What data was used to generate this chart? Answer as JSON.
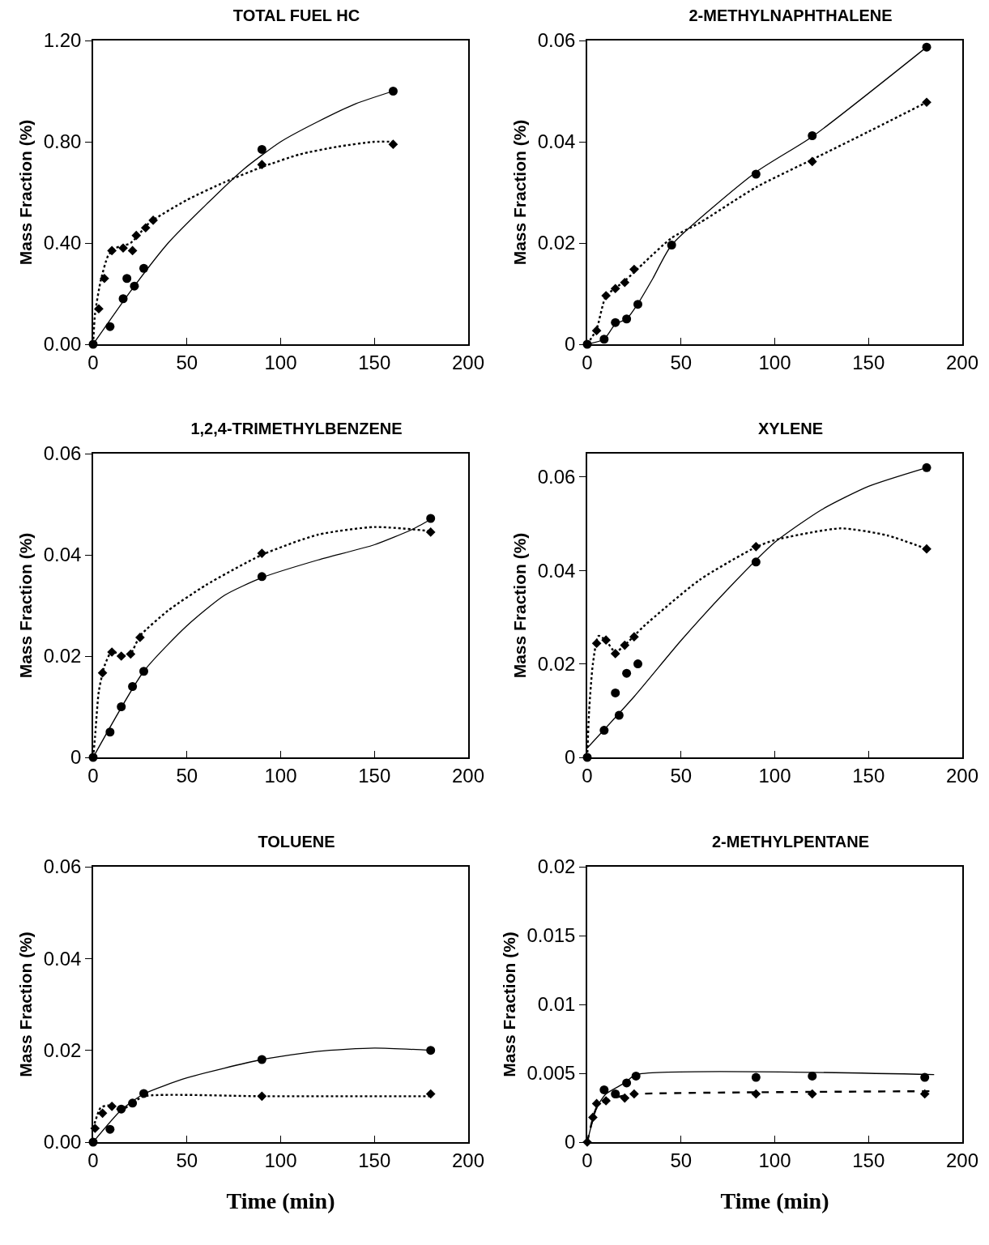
{
  "chart_data": [
    {
      "type": "scatter",
      "title": "TOTAL FUEL HC",
      "ylabel": "Mass Fraction (%)",
      "xlim": [
        0,
        200
      ],
      "xticks": [
        0,
        50,
        100,
        150,
        200
      ],
      "ylim": [
        0,
        1.2
      ],
      "yticks": [
        {
          "value": 0,
          "label": "0.00"
        },
        {
          "value": 0.4,
          "label": "0.40"
        },
        {
          "value": 0.8,
          "label": "0.80"
        },
        {
          "value": 1.2,
          "label": "1.20"
        }
      ],
      "series": [
        {
          "marker": "circle",
          "color": "#000000",
          "x": [
            0,
            9,
            16,
            18,
            22,
            27,
            90,
            160
          ],
          "values": [
            0,
            0.07,
            0.18,
            0.26,
            0.23,
            0.3,
            0.77,
            1.0
          ]
        },
        {
          "type": "scatter",
          "marker": "diamond",
          "color": "#000000",
          "x": [
            3,
            6,
            10,
            16,
            21,
            23,
            28,
            32,
            90,
            160
          ],
          "values": [
            0.14,
            0.26,
            0.37,
            0.38,
            0.37,
            0.43,
            0.46,
            0.49,
            0.71,
            0.79
          ]
        },
        {
          "type": "line",
          "line_style": "solid",
          "color": "#000000",
          "x": [
            0,
            20,
            40,
            60,
            80,
            100,
            120,
            140,
            160
          ],
          "values": [
            0,
            0.21,
            0.4,
            0.55,
            0.69,
            0.8,
            0.88,
            0.95,
            1.0
          ]
        },
        {
          "type": "line",
          "line_style": "dotted",
          "color": "#000000",
          "x": [
            0,
            1,
            4,
            8,
            12,
            20,
            30,
            50,
            70,
            90,
            110,
            130,
            150,
            160
          ],
          "values": [
            0,
            0.12,
            0.25,
            0.35,
            0.38,
            0.4,
            0.48,
            0.57,
            0.64,
            0.7,
            0.75,
            0.78,
            0.8,
            0.8
          ]
        }
      ]
    },
    {
      "type": "scatter",
      "title": "2-METHYLNAPHTHALENE",
      "ylabel": "Mass Fraction (%)",
      "xlim": [
        0,
        200
      ],
      "xticks": [
        0,
        50,
        100,
        150,
        200
      ],
      "ylim": [
        0,
        0.06
      ],
      "yticks": [
        0,
        0.02,
        0.04,
        0.06
      ],
      "series": [
        {
          "marker": "circle",
          "color": "#000000",
          "x": [
            0,
            9,
            15,
            21,
            27,
            45,
            90,
            120,
            181
          ],
          "values": [
            0,
            0.001,
            0.0043,
            0.005,
            0.0079,
            0.0196,
            0.0336,
            0.0412,
            0.0587
          ]
        },
        {
          "type": "scatter",
          "marker": "diamond",
          "color": "#000000",
          "x": [
            5,
            10,
            15,
            20,
            25,
            120,
            181
          ],
          "values": [
            0.0027,
            0.0096,
            0.011,
            0.0122,
            0.0148,
            0.0361,
            0.0478
          ]
        },
        {
          "type": "line",
          "line_style": "solid",
          "color": "#000000",
          "x": [
            0,
            9,
            15,
            21,
            27,
            35,
            45,
            90,
            120,
            181
          ],
          "values": [
            0,
            0.001,
            0.004,
            0.005,
            0.008,
            0.013,
            0.0196,
            0.034,
            0.041,
            0.0587
          ]
        },
        {
          "type": "line",
          "line_style": "dotted",
          "color": "#000000",
          "x": [
            0,
            5,
            10,
            20,
            30,
            45,
            60,
            90,
            120,
            150,
            181
          ],
          "values": [
            0,
            0.003,
            0.0095,
            0.0125,
            0.016,
            0.021,
            0.024,
            0.031,
            0.0365,
            0.042,
            0.0478
          ]
        }
      ]
    },
    {
      "type": "scatter",
      "title": "1,2,4-TRIMETHYLBENZENE",
      "ylabel": "Mass Fraction (%)",
      "xlim": [
        0,
        200
      ],
      "xticks": [
        0,
        50,
        100,
        150,
        200
      ],
      "ylim": [
        0,
        0.06
      ],
      "yticks": [
        0,
        0.02,
        0.04,
        0.06
      ],
      "series": [
        {
          "marker": "circle",
          "color": "#000000",
          "x": [
            0,
            9,
            15,
            21,
            27,
            90,
            180
          ],
          "values": [
            0,
            0.005,
            0.01,
            0.014,
            0.017,
            0.0357,
            0.0472
          ]
        },
        {
          "type": "scatter",
          "marker": "diamond",
          "color": "#000000",
          "x": [
            5,
            10,
            15,
            20,
            25,
            90,
            180
          ],
          "values": [
            0.0167,
            0.0208,
            0.02,
            0.0204,
            0.0237,
            0.0403,
            0.0445
          ]
        },
        {
          "type": "line",
          "line_style": "solid",
          "color": "#000000",
          "x": [
            0,
            27,
            50,
            70,
            90,
            120,
            150,
            170,
            180
          ],
          "values": [
            0,
            0.017,
            0.026,
            0.032,
            0.0355,
            0.039,
            0.042,
            0.045,
            0.047
          ]
        },
        {
          "type": "line",
          "line_style": "dotted",
          "color": "#000000",
          "x": [
            0,
            1,
            3,
            6,
            10,
            15,
            20,
            25,
            40,
            60,
            90,
            120,
            150,
            180
          ],
          "values": [
            0,
            0.004,
            0.013,
            0.018,
            0.021,
            0.02,
            0.0205,
            0.024,
            0.029,
            0.034,
            0.04,
            0.044,
            0.0455,
            0.0447
          ]
        }
      ]
    },
    {
      "type": "scatter",
      "title": "XYLENE",
      "ylabel": "Mass Fraction (%)",
      "xlim": [
        0,
        200
      ],
      "xticks": [
        0,
        50,
        100,
        150,
        200
      ],
      "ylim": [
        0,
        0.065
      ],
      "yticks": [
        0,
        0.02,
        0.04,
        0.06
      ],
      "series": [
        {
          "marker": "circle",
          "color": "#000000",
          "x": [
            0,
            9,
            15,
            17,
            21,
            27,
            90,
            181
          ],
          "values": [
            0,
            0.0058,
            0.0138,
            0.009,
            0.018,
            0.02,
            0.0418,
            0.062
          ]
        },
        {
          "type": "scatter",
          "marker": "diamond",
          "color": "#000000",
          "x": [
            5,
            10,
            15,
            20,
            25,
            90,
            181
          ],
          "values": [
            0.0244,
            0.0251,
            0.0222,
            0.024,
            0.0258,
            0.0451,
            0.0446
          ]
        },
        {
          "type": "line",
          "line_style": "solid",
          "color": "#000000",
          "x": [
            0,
            25,
            50,
            75,
            100,
            125,
            150,
            181
          ],
          "values": [
            0.002,
            0.013,
            0.025,
            0.036,
            0.046,
            0.053,
            0.058,
            0.062
          ]
        },
        {
          "type": "line",
          "line_style": "dotted",
          "color": "#000000",
          "x": [
            0,
            1,
            3,
            6,
            10,
            15,
            20,
            30,
            60,
            90,
            100,
            135,
            160,
            181
          ],
          "values": [
            0,
            0.01,
            0.02,
            0.026,
            0.025,
            0.0225,
            0.024,
            0.028,
            0.038,
            0.045,
            0.0465,
            0.049,
            0.0475,
            0.0446
          ]
        }
      ]
    },
    {
      "type": "scatter",
      "title": "TOLUENE",
      "ylabel": "Mass Fraction (%)",
      "xlabel": "Time (min)",
      "xlim": [
        0,
        200
      ],
      "xticks": [
        0,
        50,
        100,
        150,
        200
      ],
      "ylim": [
        0,
        0.06
      ],
      "yticks": [
        {
          "value": 0,
          "label": "0.00"
        },
        0.02,
        0.04,
        0.06
      ],
      "series": [
        {
          "marker": "circle",
          "color": "#000000",
          "x": [
            0,
            9,
            15,
            21,
            27,
            90,
            180
          ],
          "values": [
            0,
            0.0028,
            0.0072,
            0.0085,
            0.0106,
            0.018,
            0.02
          ]
        },
        {
          "type": "scatter",
          "marker": "diamond",
          "color": "#000000",
          "x": [
            1,
            5,
            10,
            90,
            180
          ],
          "values": [
            0.003,
            0.0063,
            0.0078,
            0.01,
            0.0105
          ]
        },
        {
          "type": "line",
          "line_style": "solid",
          "color": "#000000",
          "x": [
            0,
            15,
            27,
            50,
            90,
            120,
            150,
            180
          ],
          "values": [
            0,
            0.007,
            0.0105,
            0.014,
            0.018,
            0.0198,
            0.0205,
            0.02
          ]
        },
        {
          "type": "line",
          "line_style": "dotted",
          "color": "#000000",
          "x": [
            0,
            4,
            8,
            15,
            21,
            27,
            90,
            180
          ],
          "values": [
            0.003,
            0.0075,
            0.008,
            0.007,
            0.0085,
            0.01,
            0.01,
            0.01
          ]
        }
      ]
    },
    {
      "type": "scatter",
      "title": "2-METHYLPENTANE",
      "ylabel": "Mass Fraction (%)",
      "xlabel": "Time (min)",
      "xlim": [
        0,
        200
      ],
      "xticks": [
        0,
        50,
        100,
        150,
        200
      ],
      "ylim": [
        0,
        0.02
      ],
      "yticks": [
        0,
        0.005,
        0.01,
        0.015,
        0.02
      ],
      "series": [
        {
          "marker": "circle",
          "color": "#000000",
          "x": [
            9,
            15,
            21,
            26,
            90,
            120,
            180
          ],
          "values": [
            0.0038,
            0.0035,
            0.0043,
            0.0048,
            0.0047,
            0.0048,
            0.0047
          ]
        },
        {
          "type": "scatter",
          "marker": "diamond",
          "color": "#000000",
          "x": [
            0,
            3,
            5,
            10,
            20,
            25,
            90,
            120,
            180
          ],
          "values": [
            0,
            0.0018,
            0.0028,
            0.003,
            0.0032,
            0.0035,
            0.0035,
            0.0035,
            0.0035
          ]
        },
        {
          "type": "line",
          "line_style": "solid",
          "color": "#000000",
          "x": [
            0,
            5,
            10,
            20,
            26,
            185
          ],
          "values": [
            0,
            0.0025,
            0.0035,
            0.0043,
            0.0049,
            0.0049
          ]
        },
        {
          "type": "line",
          "line_style": "dashed",
          "color": "#000000",
          "x": [
            0,
            5,
            10,
            20,
            26,
            183
          ],
          "values": [
            0,
            0.0025,
            0.003,
            0.0034,
            0.0035,
            0.0037
          ]
        }
      ]
    }
  ]
}
